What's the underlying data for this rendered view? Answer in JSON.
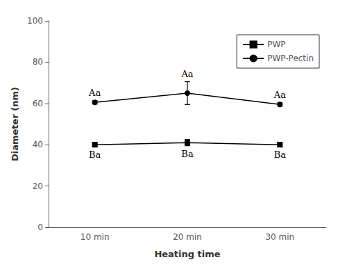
{
  "chart_data": {
    "type": "line",
    "categories": [
      "10 min",
      "20 min",
      "30 min"
    ],
    "series": [
      {
        "name": "PWP",
        "color": "#000000",
        "marker": "square",
        "values": [
          40.0,
          41.0,
          40.0
        ],
        "errors": [
          1.0,
          1.5,
          1.0
        ],
        "annotations": [
          "Ba",
          "Ba",
          "Ba"
        ]
      },
      {
        "name": "PWP-Pectin",
        "color": "#000000",
        "marker": "circle",
        "values": [
          60.5,
          65.0,
          59.5
        ],
        "errors": [
          0.8,
          5.5,
          0.8
        ],
        "annotations": [
          "Aa",
          "Aa",
          "Aa"
        ]
      }
    ],
    "xlabel": "Heating time",
    "ylabel": "Diameter (nm)",
    "ylim": [
      0,
      100
    ],
    "yticks": [
      0,
      20,
      40,
      60,
      80,
      100
    ],
    "grid": false,
    "legend": "upper right"
  }
}
